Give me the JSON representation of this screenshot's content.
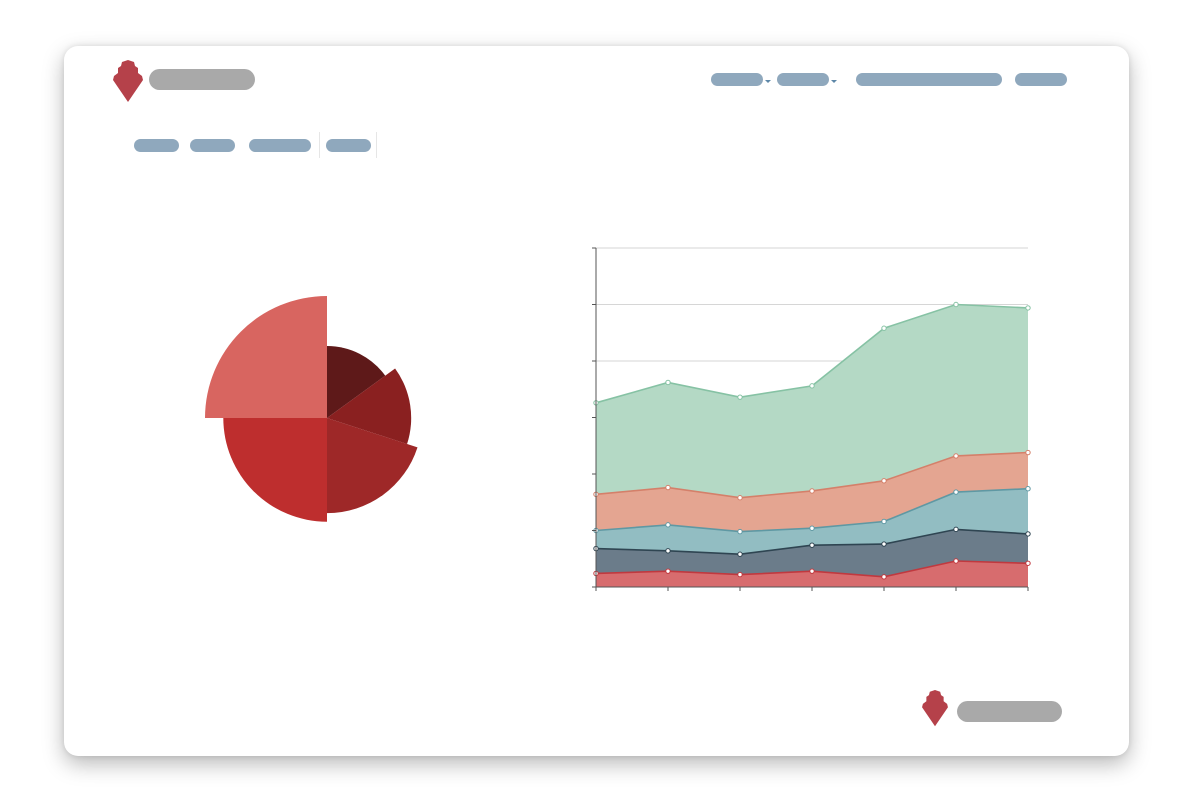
{
  "colors": {
    "logo": "#b5414a",
    "placeholder_gray": "#a9a9a9",
    "placeholder_blue": "#8fa8bd",
    "caret": "#5d87a8",
    "grid": "#d6d6d6",
    "axis": "#555555"
  },
  "header": {
    "logo_icon": "shield-crest-icon",
    "nav_items": [
      {
        "name": "nav-dropdown-1",
        "dropdown": true
      },
      {
        "name": "nav-dropdown-2",
        "dropdown": true
      },
      {
        "name": "nav-link-3",
        "dropdown": false
      },
      {
        "name": "nav-link-4",
        "dropdown": false
      }
    ]
  },
  "tabs": [
    {
      "name": "tab-1"
    },
    {
      "name": "tab-2"
    },
    {
      "name": "tab-3"
    },
    {
      "name": "tab-4"
    }
  ],
  "footer": {
    "logo_icon": "shield-crest-icon"
  },
  "chart_data": [
    {
      "type": "pie",
      "variant": "variable-radius",
      "slices": [
        {
          "value": 15,
          "relative_radius": 0.59,
          "color": "#5e1919"
        },
        {
          "value": 15,
          "relative_radius": 0.69,
          "color": "#8a2020"
        },
        {
          "value": 20,
          "relative_radius": 0.78,
          "color": "#9e2828"
        },
        {
          "value": 25,
          "relative_radius": 0.85,
          "color": "#be2e2e"
        },
        {
          "value": 25,
          "relative_radius": 1.0,
          "color": "#d86560"
        }
      ]
    },
    {
      "type": "area",
      "stacked": true,
      "grid": true,
      "ylim": [
        0,
        300
      ],
      "yticks": [
        0,
        50,
        100,
        150,
        200,
        250,
        300
      ],
      "x": [
        0,
        1,
        2,
        3,
        4,
        5,
        6
      ],
      "series": [
        {
          "values": [
            12,
            14,
            11,
            14,
            9,
            23,
            21
          ],
          "color": "#d76c6e",
          "line": "#c0393f"
        },
        {
          "values": [
            22,
            18,
            18,
            23,
            29,
            28,
            26
          ],
          "color": "#6b7c8a",
          "line": "#2f4552"
        },
        {
          "values": [
            16,
            23,
            20,
            15,
            20,
            33,
            40
          ],
          "color": "#92bdc2",
          "line": "#5f98a3"
        },
        {
          "values": [
            32,
            33,
            30,
            33,
            36,
            32,
            32
          ],
          "color": "#e4a591",
          "line": "#d4806a"
        },
        {
          "values": [
            81,
            93,
            89,
            93,
            135,
            134,
            128
          ],
          "color": "#b4d9c5",
          "line": "#86c2a4"
        }
      ]
    }
  ]
}
